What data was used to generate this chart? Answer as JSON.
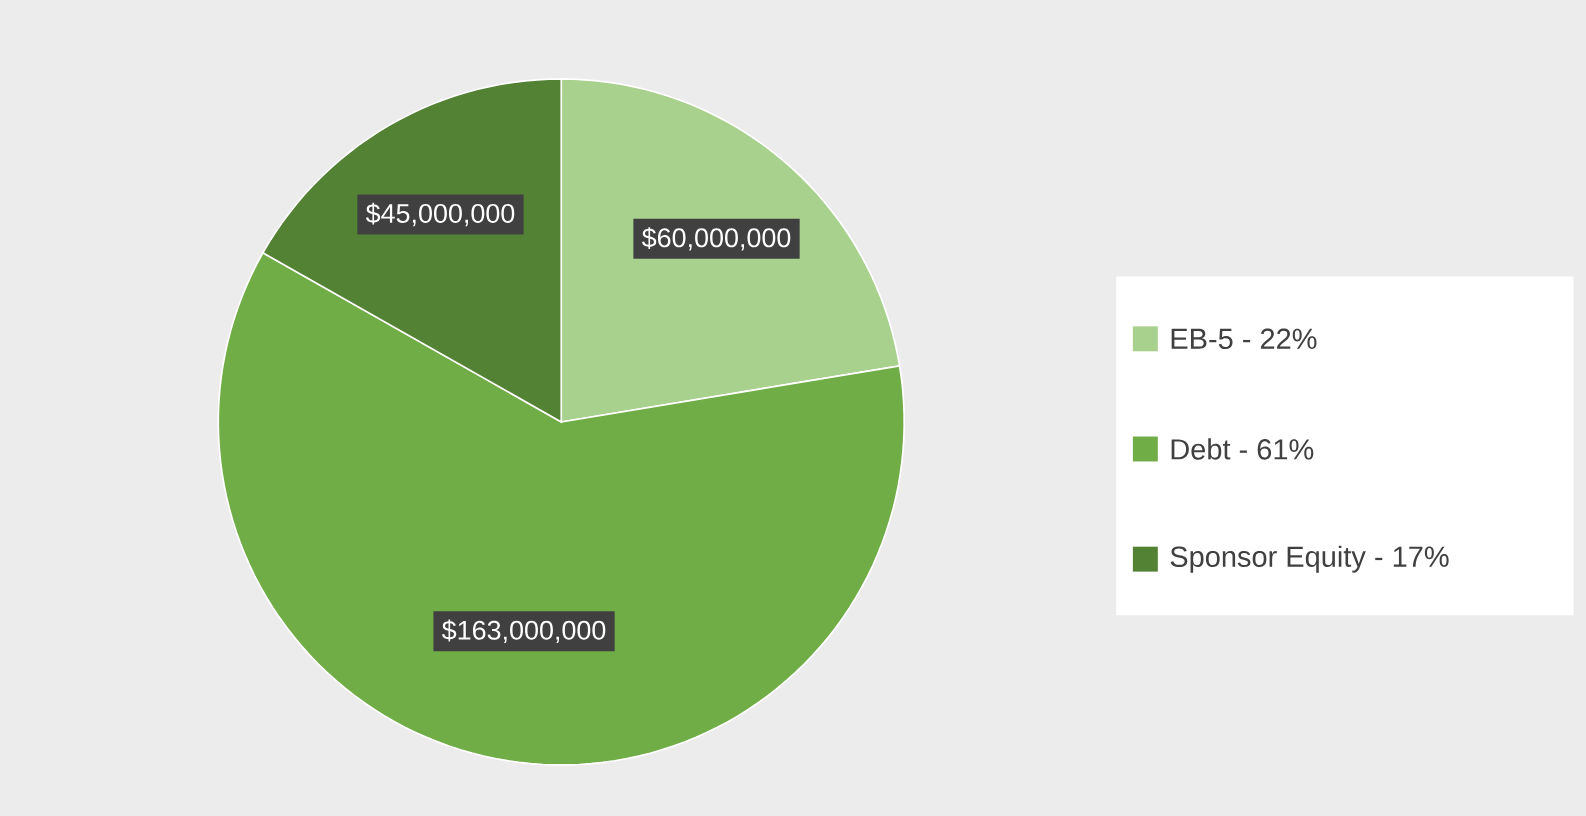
{
  "chart_data": {
    "type": "pie",
    "categories": [
      "EB-5 - 22%",
      "Debt - 61%",
      "Sponsor Equity - 17%"
    ],
    "values": [
      60000000,
      163000000,
      45000000
    ],
    "value_labels": [
      "$60,000,000",
      "$163,000,000",
      "$45,000,000"
    ],
    "colors": [
      "#a9d18e",
      "#70ad47",
      "#548235"
    ],
    "legend": "right"
  }
}
